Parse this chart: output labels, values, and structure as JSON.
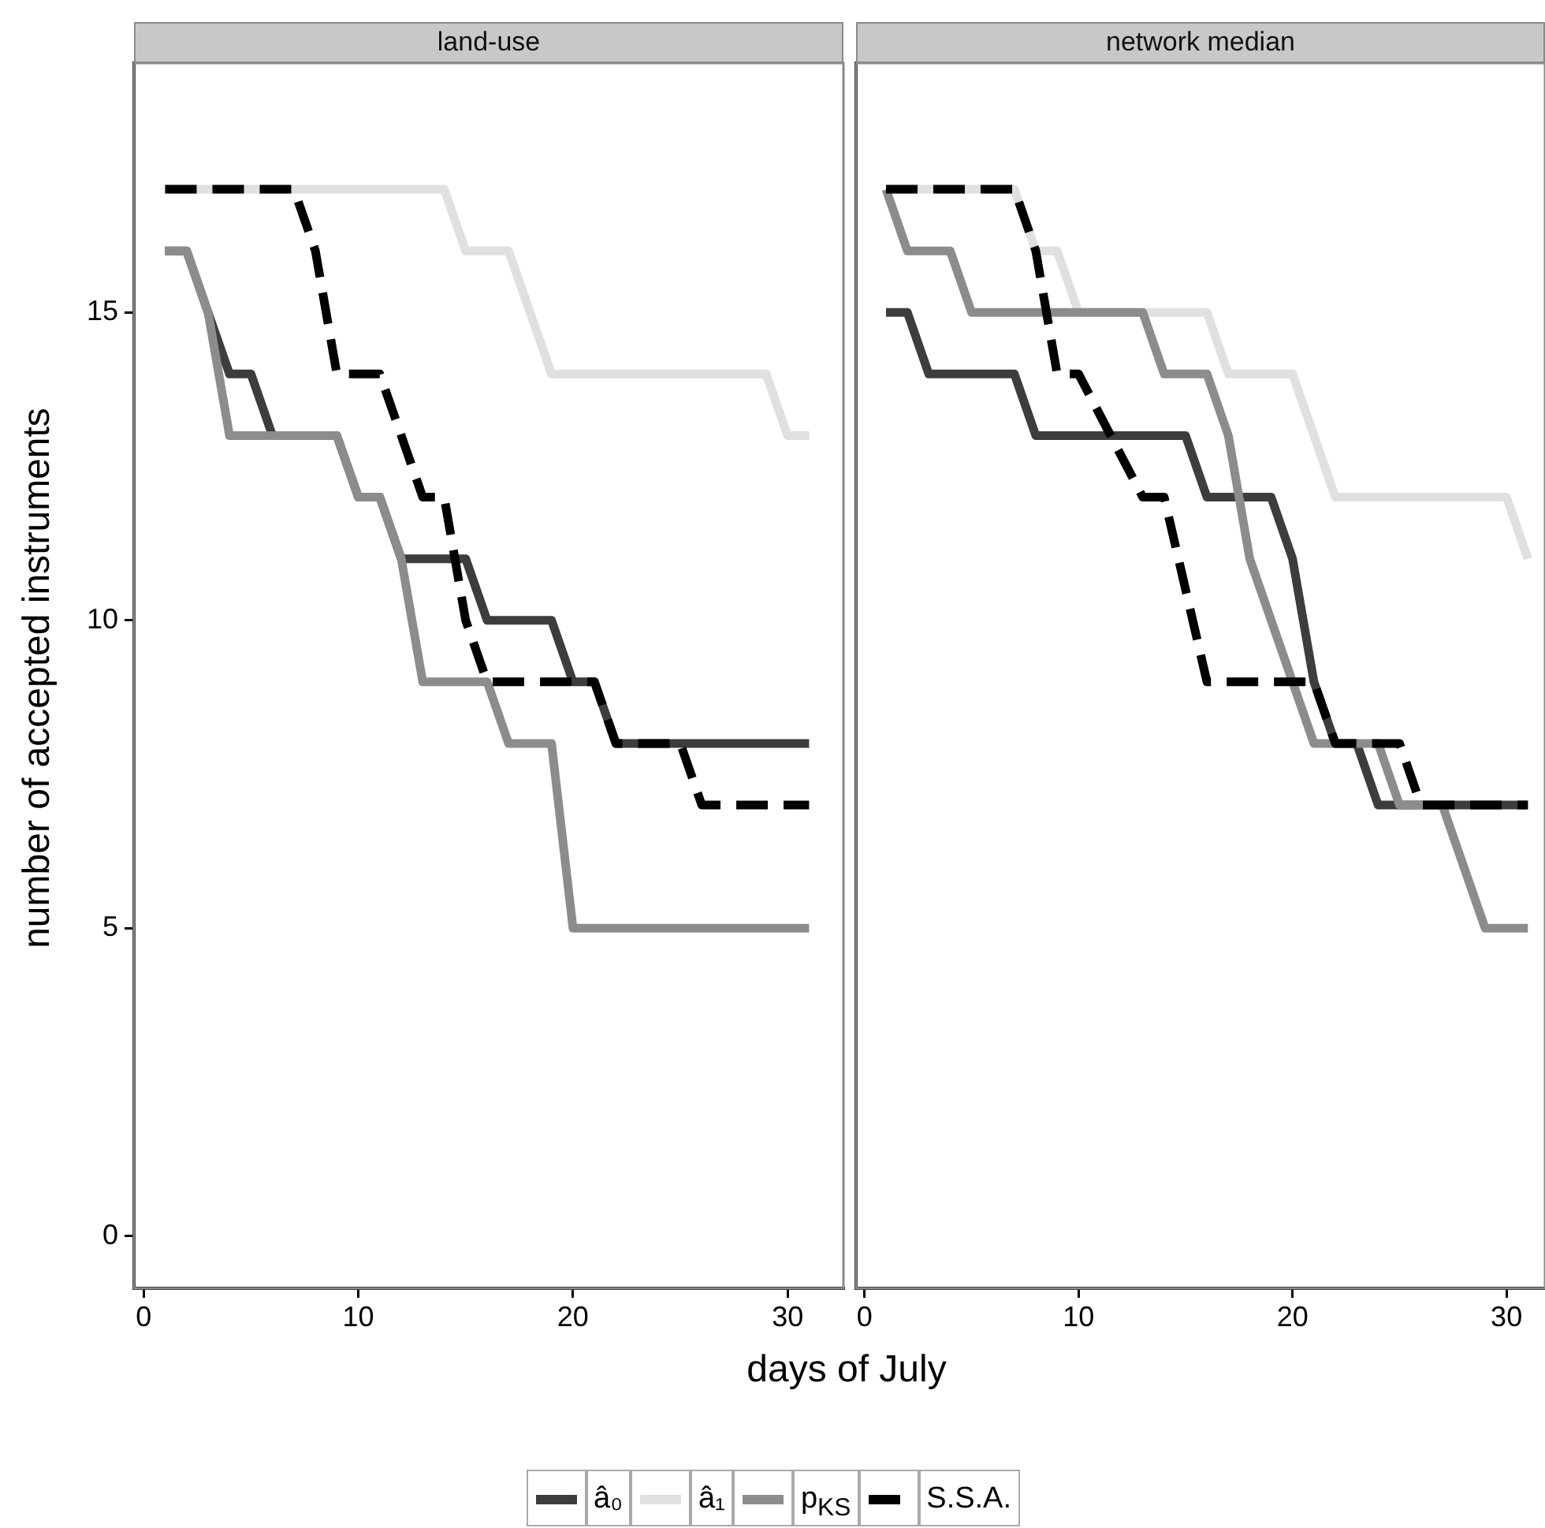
{
  "chart_data": [
    {
      "type": "line",
      "title": "land-use",
      "xlabel": "days of July",
      "ylabel": "number of accepted instruments",
      "xlim": [
        -0.45,
        32.6
      ],
      "ylim": [
        -0.85,
        19.05
      ],
      "xticks": [
        0,
        10,
        20,
        30
      ],
      "yticks": [
        0,
        5,
        10,
        15
      ],
      "grid": false,
      "legend": "bottom",
      "marker": "none",
      "series": [
        {
          "name": "â₀",
          "color": "#3d3d3d",
          "x": [
            1,
            2,
            3,
            4,
            5,
            6,
            9,
            10,
            11,
            12,
            15,
            16,
            19,
            20,
            21,
            22,
            31
          ],
          "values": [
            16,
            16,
            15,
            14,
            14,
            13,
            13,
            12,
            12,
            11,
            11,
            10,
            10,
            9,
            9,
            8,
            8
          ]
        },
        {
          "name": "â₁",
          "color": "#e0e0e0",
          "x": [
            1,
            14,
            15,
            17,
            19,
            29,
            30,
            31
          ],
          "values": [
            17,
            17,
            16,
            16,
            14,
            14,
            13,
            13
          ]
        },
        {
          "name": "p$_{KS}$",
          "color": "#8c8c8c",
          "x": [
            1,
            2,
            3,
            4,
            9,
            10,
            11,
            12,
            13,
            16,
            17,
            19,
            20,
            31
          ],
          "values": [
            16,
            16,
            15,
            13,
            13,
            12,
            12,
            11,
            9,
            9,
            8,
            8,
            5,
            5
          ]
        },
        {
          "name": "S.S.A.",
          "color": "#000000",
          "line_style": "dashed",
          "x": [
            1,
            7,
            8,
            9,
            11,
            12,
            13,
            14,
            15,
            16,
            21,
            22,
            25,
            26,
            31
          ],
          "values": [
            17,
            17,
            16,
            14,
            14,
            13,
            12,
            12,
            10,
            9,
            9,
            8,
            8,
            7,
            7
          ]
        }
      ]
    },
    {
      "type": "line",
      "title": "network median",
      "xlim": [
        -0.4,
        31.8
      ],
      "ylim": [
        -0.85,
        19.05
      ],
      "xticks": [
        0,
        10,
        20,
        30
      ],
      "yticks": [
        0,
        5,
        10,
        15
      ],
      "grid": false,
      "tick_labels": "x",
      "marker": "none",
      "series": [
        {
          "color": "#3d3d3d",
          "x": [
            1,
            2,
            3,
            7,
            8,
            15,
            16,
            19,
            20,
            21,
            22,
            23,
            24,
            31
          ],
          "values": [
            15,
            15,
            14,
            14,
            13,
            13,
            12,
            12,
            11,
            9,
            8,
            8,
            7,
            7
          ]
        },
        {
          "color": "#e0e0e0",
          "x": [
            1,
            7,
            8,
            9,
            10,
            16,
            17,
            20,
            22,
            30,
            31
          ],
          "values": [
            17,
            17,
            16,
            16,
            15,
            15,
            14,
            14,
            12,
            12,
            11
          ]
        },
        {
          "color": "#8c8c8c",
          "x": [
            1,
            2,
            4,
            5,
            13,
            14,
            16,
            17,
            18,
            21,
            24,
            25,
            27,
            29,
            31
          ],
          "values": [
            17,
            16,
            16,
            15,
            15,
            14,
            14,
            13,
            11,
            8,
            8,
            7,
            7,
            5,
            5
          ]
        },
        {
          "color": "#000000",
          "line_style": "dashed",
          "x": [
            1,
            7,
            8,
            9,
            10,
            13,
            14,
            16,
            21,
            22,
            25,
            26,
            31
          ],
          "values": [
            17,
            17,
            16,
            14,
            14,
            12,
            12,
            9,
            9,
            8,
            8,
            7,
            7
          ]
        }
      ]
    }
  ]
}
